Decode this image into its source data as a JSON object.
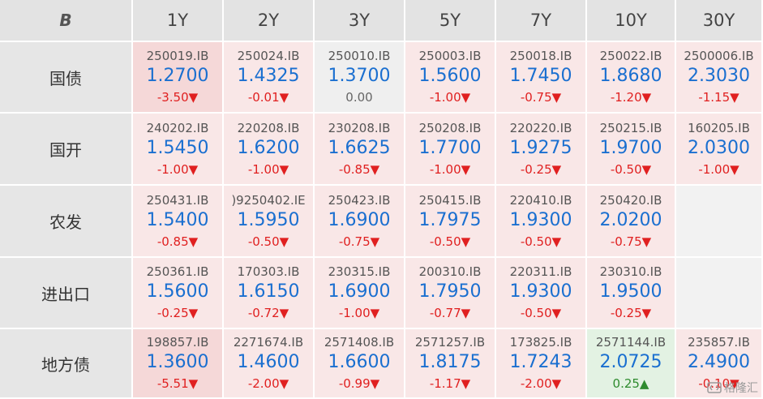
{
  "logo_text": "B",
  "columns": [
    "1Y",
    "2Y",
    "3Y",
    "5Y",
    "7Y",
    "10Y",
    "30Y"
  ],
  "rows": [
    {
      "label": "国债",
      "cells": [
        {
          "code": "250019.IB",
          "rate": "1.2700",
          "change": "-3.50▼",
          "dir": "down",
          "bg": "red-strong"
        },
        {
          "code": "250024.IB",
          "rate": "1.4325",
          "change": "-0.01▼",
          "dir": "down",
          "bg": "red"
        },
        {
          "code": "250010.IB",
          "rate": "1.3700",
          "change": "0.00",
          "dir": "flat",
          "bg": "gray"
        },
        {
          "code": "250003.IB",
          "rate": "1.5600",
          "change": "-1.00▼",
          "dir": "down",
          "bg": "red"
        },
        {
          "code": "250018.IB",
          "rate": "1.7450",
          "change": "-0.75▼",
          "dir": "down",
          "bg": "red"
        },
        {
          "code": "250022.IB",
          "rate": "1.8680",
          "change": "-1.20▼",
          "dir": "down",
          "bg": "red"
        },
        {
          "code": "2500006.IB",
          "rate": "2.3030",
          "change": "-1.15▼",
          "dir": "down",
          "bg": "red"
        }
      ]
    },
    {
      "label": "国开",
      "cells": [
        {
          "code": "240202.IB",
          "rate": "1.5450",
          "change": "-1.00▼",
          "dir": "down",
          "bg": "red"
        },
        {
          "code": "220208.IB",
          "rate": "1.6200",
          "change": "-1.00▼",
          "dir": "down",
          "bg": "red"
        },
        {
          "code": "230208.IB",
          "rate": "1.6625",
          "change": "-0.85▼",
          "dir": "down",
          "bg": "red"
        },
        {
          "code": "250208.IB",
          "rate": "1.7700",
          "change": "-1.00▼",
          "dir": "down",
          "bg": "red"
        },
        {
          "code": "220220.IB",
          "rate": "1.9275",
          "change": "-0.25▼",
          "dir": "down",
          "bg": "red"
        },
        {
          "code": "250215.IB",
          "rate": "1.9700",
          "change": "-0.50▼",
          "dir": "down",
          "bg": "red"
        },
        {
          "code": "160205.IB",
          "rate": "2.0300",
          "change": "-1.00▼",
          "dir": "down",
          "bg": "red"
        }
      ]
    },
    {
      "label": "农发",
      "cells": [
        {
          "code": "250431.IB",
          "rate": "1.5400",
          "change": "-0.85▼",
          "dir": "down",
          "bg": "red"
        },
        {
          "code": ")9250402.IE",
          "rate": "1.5950",
          "change": "-0.50▼",
          "dir": "down",
          "bg": "red"
        },
        {
          "code": "250423.IB",
          "rate": "1.6900",
          "change": "-0.75▼",
          "dir": "down",
          "bg": "red"
        },
        {
          "code": "250415.IB",
          "rate": "1.7975",
          "change": "-0.50▼",
          "dir": "down",
          "bg": "red"
        },
        {
          "code": "220410.IB",
          "rate": "1.9300",
          "change": "-0.50▼",
          "dir": "down",
          "bg": "red"
        },
        {
          "code": "250420.IB",
          "rate": "2.0200",
          "change": "-0.75▼",
          "dir": "down",
          "bg": "red"
        },
        {
          "code": "",
          "rate": "",
          "change": "",
          "dir": "flat",
          "bg": "empty"
        }
      ]
    },
    {
      "label": "进出口",
      "cells": [
        {
          "code": "250361.IB",
          "rate": "1.5600",
          "change": "-0.25▼",
          "dir": "down",
          "bg": "red"
        },
        {
          "code": "170303.IB",
          "rate": "1.6150",
          "change": "-0.72▼",
          "dir": "down",
          "bg": "red"
        },
        {
          "code": "230315.IB",
          "rate": "1.6900",
          "change": "-1.00▼",
          "dir": "down",
          "bg": "red"
        },
        {
          "code": "200310.IB",
          "rate": "1.7950",
          "change": "-0.77▼",
          "dir": "down",
          "bg": "red"
        },
        {
          "code": "220311.IB",
          "rate": "1.9300",
          "change": "-0.50▼",
          "dir": "down",
          "bg": "red"
        },
        {
          "code": "230310.IB",
          "rate": "1.9500",
          "change": "-0.25▼",
          "dir": "down",
          "bg": "red"
        },
        {
          "code": "",
          "rate": "",
          "change": "",
          "dir": "flat",
          "bg": "empty"
        }
      ]
    },
    {
      "label": "地方债",
      "cells": [
        {
          "code": "198857.IB",
          "rate": "1.3600",
          "change": "-5.51▼",
          "dir": "down",
          "bg": "red-strong"
        },
        {
          "code": "2271674.IB",
          "rate": "1.4600",
          "change": "-2.00▼",
          "dir": "down",
          "bg": "red"
        },
        {
          "code": "2571408.IB",
          "rate": "1.6600",
          "change": "-0.99▼",
          "dir": "down",
          "bg": "red"
        },
        {
          "code": "2571257.IB",
          "rate": "1.8175",
          "change": "-1.17▼",
          "dir": "down",
          "bg": "red"
        },
        {
          "code": "173825.IB",
          "rate": "1.7243",
          "change": "-2.00▼",
          "dir": "down",
          "bg": "red"
        },
        {
          "code": "2571144.IB",
          "rate": "2.0725",
          "change": "0.25▲",
          "dir": "up",
          "bg": "green"
        },
        {
          "code": "235857.IB",
          "rate": "2.4900",
          "change": "-0.10▼",
          "dir": "down",
          "bg": "red"
        }
      ]
    }
  ],
  "watermark": "格隆汇",
  "icons": {
    "logo": "b-logo-icon",
    "watermark": "gelonghui-logo-icon"
  }
}
